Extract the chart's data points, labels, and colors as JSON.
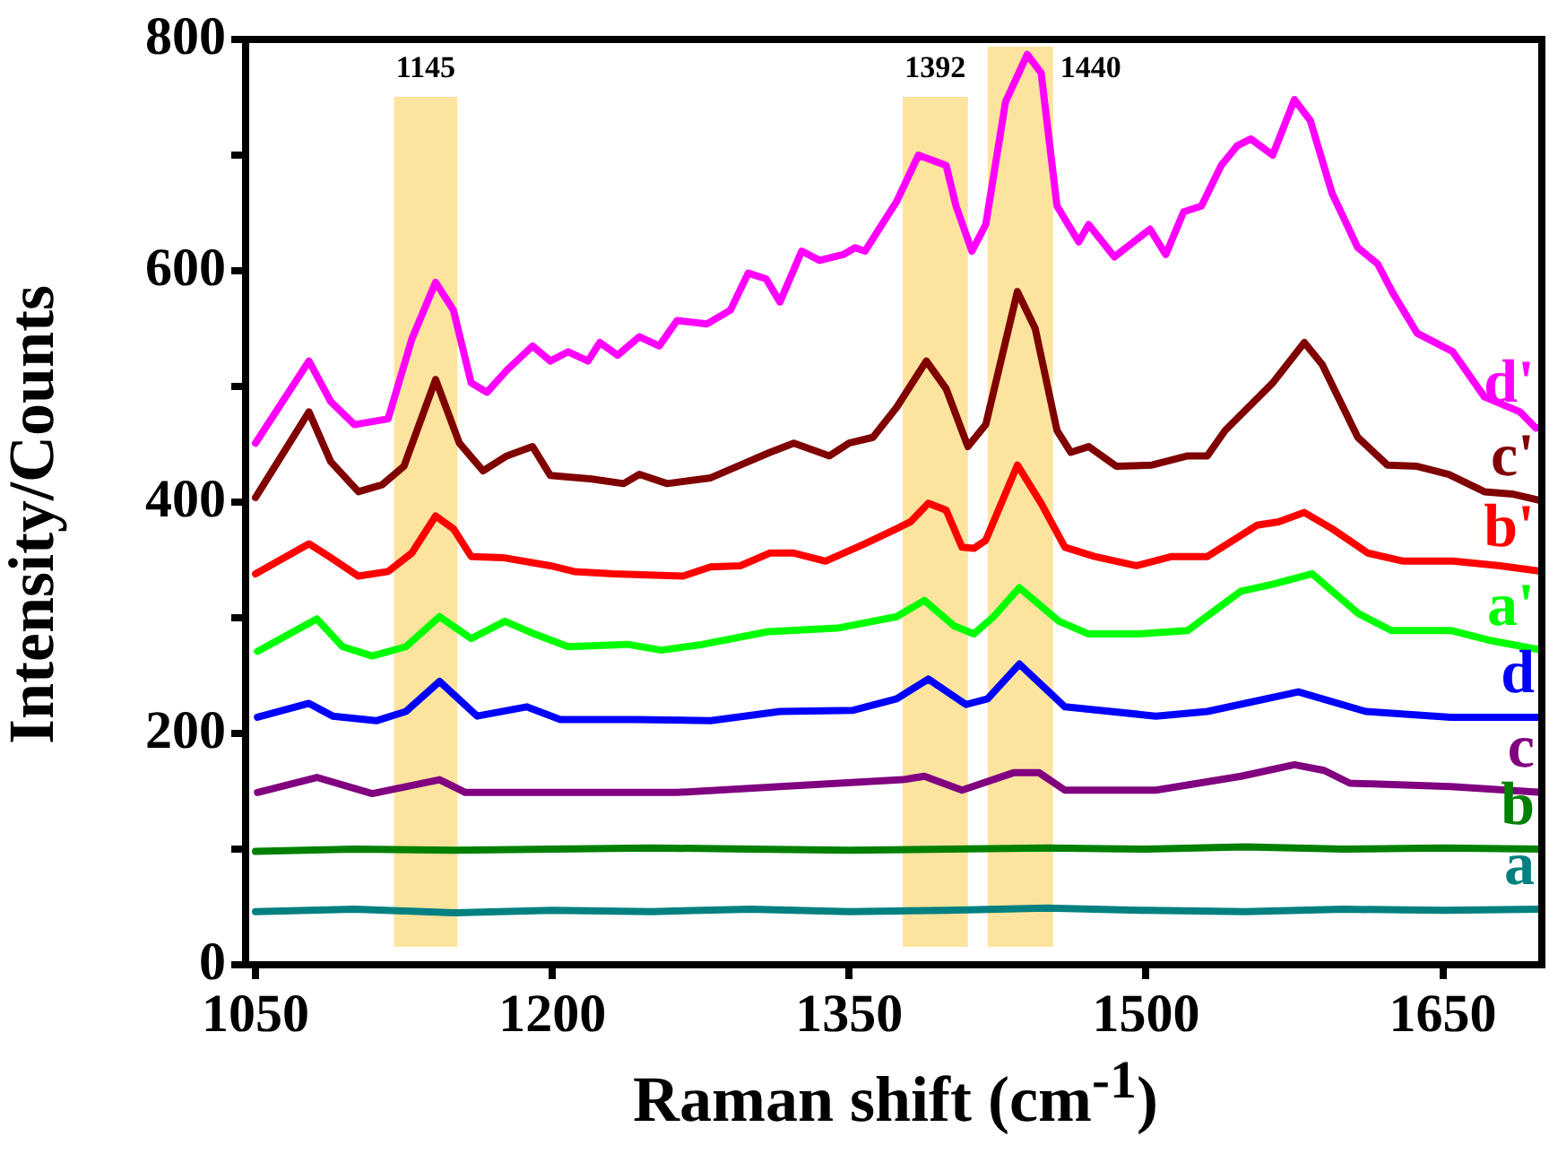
{
  "chart_data": {
    "type": "line",
    "xlabel": "Raman shift (cm$^{-1}$)",
    "ylabel": "Intensity/Counts",
    "xlim": [
      1045,
      1700
    ],
    "xticks": [
      1050,
      1200,
      1350,
      1500,
      1650
    ],
    "ylim": [
      0,
      800
    ],
    "yticks": [
      0,
      {
        "value": 100,
        "label": null
      },
      200,
      {
        "value": 300,
        "label": null
      },
      400,
      {
        "value": 500,
        "label": null
      },
      600,
      {
        "value": 700,
        "label": null
      },
      800
    ],
    "grid": false,
    "legend": false,
    "line_style": "solid",
    "bands": [
      {
        "axis": "x",
        "from": 1120,
        "to": 1152,
        "label": "1145",
        "color": "#fde49e"
      },
      {
        "axis": "x",
        "from": 1377,
        "to": 1410,
        "label": "1392",
        "color": "#fde49e"
      },
      {
        "axis": "x",
        "from": 1420,
        "to": 1453,
        "label": "1440",
        "color": "#fde49e"
      }
    ],
    "series": [
      {
        "name": "d'",
        "color": "#ff00ff",
        "x": [
          1050,
          1077,
          1088,
          1100,
          1117,
          1129,
          1141,
          1150,
          1159,
          1167,
          1177,
          1190,
          1199,
          1208,
          1218,
          1224,
          1233,
          1244,
          1254,
          1263,
          1278,
          1290,
          1299,
          1308,
          1315,
          1326,
          1335,
          1347,
          1353,
          1358,
          1374,
          1385,
          1399,
          1404,
          1412,
          1419,
          1429,
          1440,
          1447,
          1455,
          1466,
          1471,
          1484,
          1502,
          1510,
          1519,
          1528,
          1538,
          1546,
          1553,
          1564,
          1575,
          1583,
          1594,
          1607,
          1617,
          1625,
          1637,
          1655,
          1671,
          1689,
          1697,
          1700
        ],
        "values": [
          451,
          522,
          487,
          467,
          472,
          541,
          590,
          566,
          503,
          495,
          514,
          535,
          522,
          530,
          522,
          538,
          527,
          543,
          535,
          557,
          554,
          566,
          598,
          593,
          573,
          617,
          609,
          614,
          620,
          617,
          660,
          700,
          691,
          656,
          617,
          640,
          746,
          787,
          771,
          656,
          625,
          640,
          612,
          636,
          614,
          651,
          656,
          691,
          708,
          714,
          700,
          748,
          730,
          667,
          620,
          606,
          580,
          546,
          530,
          491,
          478,
          464,
          465
        ]
      },
      {
        "name": "c'",
        "color": "#800000",
        "x": [
          1050,
          1077,
          1088,
          1102,
          1114,
          1125,
          1141,
          1153,
          1165,
          1177,
          1190,
          1199,
          1220,
          1236,
          1244,
          1258,
          1280,
          1299,
          1310,
          1322,
          1340,
          1350,
          1362,
          1374,
          1389,
          1399,
          1410,
          1419,
          1435,
          1444,
          1455,
          1462,
          1471,
          1485,
          1503,
          1521,
          1531,
          1540,
          1564,
          1580,
          1589,
          1607,
          1622,
          1637,
          1653,
          1671,
          1685,
          1700
        ],
        "values": [
          404,
          478,
          435,
          409,
          415,
          431,
          506,
          451,
          427,
          440,
          448,
          423,
          420,
          416,
          424,
          416,
          421,
          435,
          443,
          451,
          440,
          451,
          456,
          482,
          522,
          498,
          448,
          467,
          582,
          550,
          462,
          443,
          448,
          431,
          432,
          440,
          440,
          462,
          503,
          538,
          519,
          456,
          432,
          431,
          424,
          409,
          407,
          401
        ]
      },
      {
        "name": "b'",
        "color": "#ff0000",
        "x": [
          1050,
          1077,
          1088,
          1102,
          1117,
          1129,
          1141,
          1150,
          1159,
          1175,
          1199,
          1211,
          1231,
          1266,
          1280,
          1295,
          1310,
          1322,
          1338,
          1358,
          1374,
          1381,
          1390,
          1399,
          1407,
          1413,
          1419,
          1435,
          1447,
          1459,
          1474,
          1495,
          1513,
          1521,
          1531,
          1544,
          1556,
          1567,
          1580,
          1594,
          1612,
          1630,
          1655,
          1679,
          1700
        ],
        "values": [
          338,
          364,
          352,
          336,
          340,
          356,
          388,
          377,
          353,
          352,
          345,
          340,
          338,
          336,
          344,
          345,
          356,
          356,
          349,
          364,
          377,
          383,
          399,
          393,
          361,
          360,
          367,
          432,
          399,
          361,
          353,
          345,
          353,
          353,
          353,
          367,
          380,
          383,
          391,
          377,
          356,
          349,
          349,
          345,
          340
        ]
      },
      {
        "name": "a'",
        "color": "#00ff00",
        "x": [
          1051,
          1081,
          1094,
          1109,
          1126,
          1143,
          1159,
          1176,
          1191,
          1208,
          1238,
          1255,
          1276,
          1309,
          1344,
          1374,
          1388,
          1403,
          1413,
          1423,
          1436,
          1456,
          1471,
          1496,
          1521,
          1548,
          1564,
          1584,
          1607,
          1624,
          1654,
          1675,
          1700
        ],
        "values": [
          271,
          299,
          275,
          267,
          275,
          301,
          282,
          297,
          286,
          275,
          277,
          272,
          277,
          288,
          291,
          301,
          315,
          293,
          286,
          301,
          326,
          297,
          286,
          286,
          289,
          323,
          329,
          338,
          304,
          289,
          289,
          280,
          272
        ]
      },
      {
        "name": "d",
        "color": "#0000ff",
        "x": [
          1051,
          1077,
          1089,
          1111,
          1126,
          1143,
          1162,
          1187,
          1204,
          1242,
          1280,
          1315,
          1352,
          1374,
          1390,
          1409,
          1420,
          1436,
          1459,
          1505,
          1531,
          1577,
          1611,
          1654,
          1700
        ],
        "values": [
          214,
          226,
          215,
          211,
          219,
          245,
          215,
          223,
          212,
          212,
          211,
          219,
          220,
          230,
          247,
          225,
          230,
          260,
          223,
          215,
          219,
          236,
          219,
          214,
          214
        ]
      },
      {
        "name": "c",
        "color": "#800080",
        "x": [
          1051,
          1081,
          1109,
          1143,
          1156,
          1208,
          1263,
          1315,
          1377,
          1388,
          1407,
          1433,
          1446,
          1459,
          1505,
          1548,
          1575,
          1590,
          1603,
          1654,
          1700
        ],
        "values": [
          149,
          162,
          148,
          160,
          149,
          149,
          149,
          154,
          160,
          163,
          151,
          166,
          166,
          151,
          151,
          163,
          173,
          168,
          157,
          154,
          149
        ]
      },
      {
        "name": "b",
        "color": "#008000",
        "x": [
          1050,
          1100,
          1150,
          1200,
          1250,
          1300,
          1350,
          1400,
          1450,
          1500,
          1550,
          1600,
          1650,
          1700
        ],
        "values": [
          98,
          100,
          99,
          100,
          101,
          100,
          99,
          100,
          101,
          100,
          102,
          100,
          101,
          100
        ]
      },
      {
        "name": "a",
        "color": "#008080",
        "x": [
          1050,
          1100,
          1150,
          1200,
          1250,
          1300,
          1350,
          1400,
          1450,
          1500,
          1550,
          1600,
          1650,
          1700
        ],
        "values": [
          46,
          48,
          45,
          47,
          46,
          48,
          46,
          47,
          49,
          47,
          46,
          48,
          47,
          48
        ]
      }
    ]
  }
}
